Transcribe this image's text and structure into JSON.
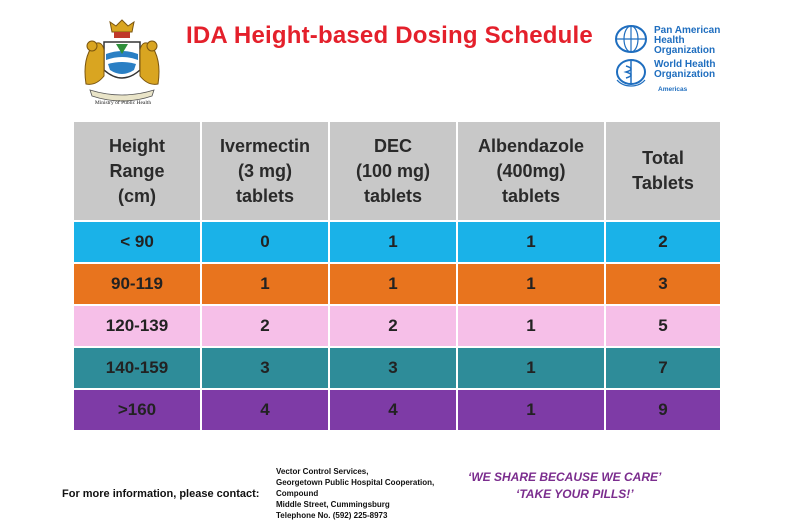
{
  "header": {
    "crest_caption": "Ministry of Public Health",
    "title": "IDA Height-based Dosing Schedule",
    "paho": {
      "lines": [
        "Pan American",
        "Health",
        "Organization"
      ]
    },
    "who": {
      "lines": [
        "World Health",
        "Organization"
      ],
      "region": "Americas"
    }
  },
  "table": {
    "columns": [
      "Height\nRange\n(cm)",
      "Ivermectin\n(3 mg)\ntablets",
      "DEC\n(100 mg)\ntablets",
      "Albendazole\n(400mg)\ntablets",
      "Total\nTablets"
    ],
    "rows": [
      {
        "color": "#1ab2e8",
        "cells": [
          "< 90",
          "0",
          "1",
          "1",
          "2"
        ]
      },
      {
        "color": "#e8741e",
        "cells": [
          "90-119",
          "1",
          "1",
          "1",
          "3"
        ]
      },
      {
        "color": "#f6bfe8",
        "cells": [
          "120-139",
          "2",
          "2",
          "1",
          "5"
        ]
      },
      {
        "color": "#2e8c99",
        "cells": [
          "140-159",
          "3",
          "3",
          "1",
          "7"
        ]
      },
      {
        "color": "#7e3ba6",
        "cells": [
          ">160",
          "4",
          "4",
          "1",
          "9"
        ]
      }
    ]
  },
  "footer": {
    "contact_label": "For more information, please contact:",
    "address": [
      "Vector Control Services,",
      "Georgetown Public Hospital Cooperation,",
      "Compound",
      "Middle Street, Cummingsburg",
      "Telephone No. (592) 225-8973"
    ],
    "slogan1": "‘WE SHARE BECAUSE WE CARE’",
    "slogan2": "‘TAKE YOUR PILLS!’"
  }
}
